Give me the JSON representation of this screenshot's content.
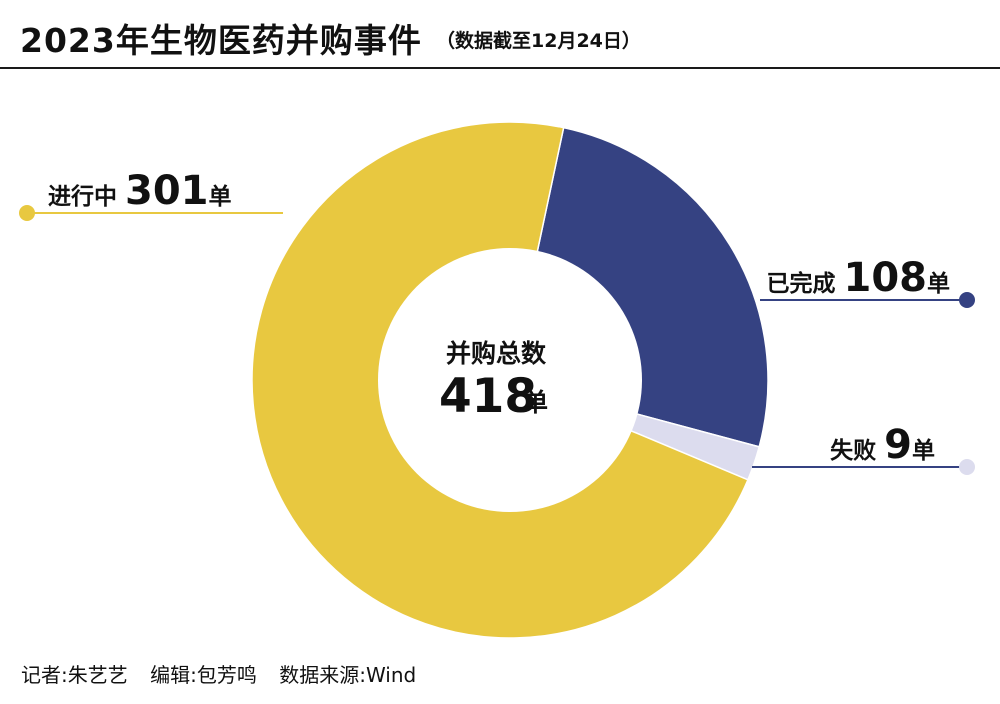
{
  "header": {
    "title": "2023年生物医药并购事件",
    "subtitle": "（数据截至12月24日）"
  },
  "colors": {
    "in_progress": "#E8C840",
    "completed": "#354282",
    "failed": "#DCDCEE",
    "text": "#111111"
  },
  "chart_data": {
    "type": "pie",
    "center": {
      "label": "并购总数",
      "value": "418",
      "unit": "单"
    },
    "slices": [
      {
        "label": "已完成",
        "value": 108,
        "unit": "单",
        "color": "#354282"
      },
      {
        "label": "失败",
        "value": 9,
        "unit": "单",
        "color": "#DCDCEE"
      },
      {
        "label": "进行中",
        "value": 301,
        "unit": "单",
        "color": "#E8C840"
      }
    ]
  },
  "footer": {
    "reporter": "记者:朱艺艺",
    "editor": "编辑:包芳鸣",
    "source": "数据来源:Wind"
  }
}
